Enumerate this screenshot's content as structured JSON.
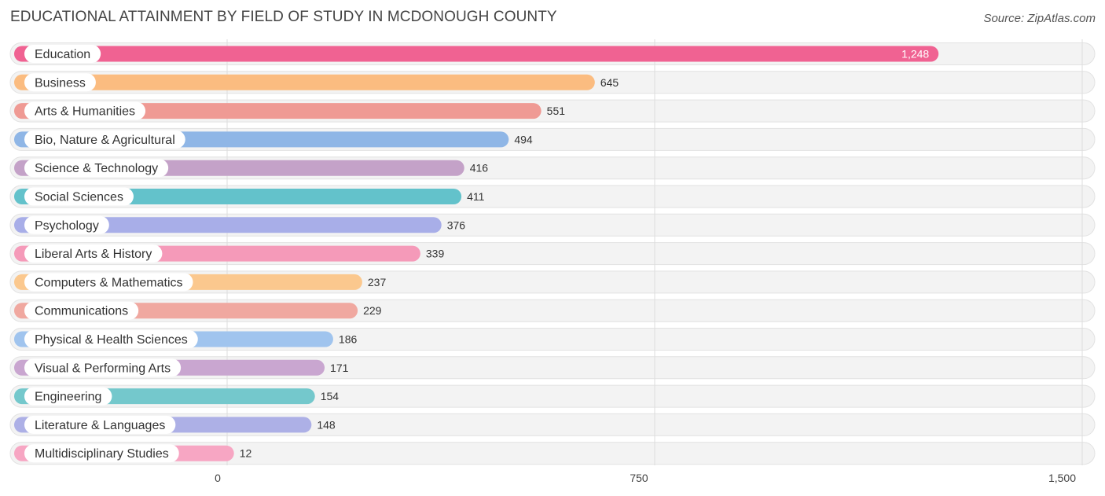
{
  "header": {
    "title": "EDUCATIONAL ATTAINMENT BY FIELD OF STUDY IN MCDONOUGH COUNTY",
    "source": "Source: ZipAtlas.com"
  },
  "chart_data": {
    "type": "bar",
    "orientation": "horizontal",
    "title": "EDUCATIONAL ATTAINMENT BY FIELD OF STUDY IN MCDONOUGH COUNTY",
    "xlabel": "",
    "ylabel": "",
    "xlim": [
      0,
      1500
    ],
    "grid": true,
    "categories": [
      "Education",
      "Business",
      "Arts & Humanities",
      "Bio, Nature & Agricultural",
      "Science & Technology",
      "Social Sciences",
      "Psychology",
      "Liberal Arts & History",
      "Computers & Mathematics",
      "Communications",
      "Physical & Health Sciences",
      "Visual & Performing Arts",
      "Engineering",
      "Literature & Languages",
      "Multidisciplinary Studies"
    ],
    "values": [
      1248,
      645,
      551,
      494,
      416,
      411,
      376,
      339,
      237,
      229,
      186,
      171,
      154,
      148,
      12
    ],
    "value_labels": [
      "1,248",
      "645",
      "551",
      "494",
      "416",
      "411",
      "376",
      "339",
      "237",
      "229",
      "186",
      "171",
      "154",
      "148",
      "12"
    ],
    "colors": [
      "#f06292",
      "#fbbc80",
      "#ef9a94",
      "#8fb6e6",
      "#c4a2c8",
      "#63c2cb",
      "#a8aee8",
      "#f59ab9",
      "#fbc88e",
      "#f0a8a0",
      "#a0c4ee",
      "#c9a6d0",
      "#74c8cc",
      "#adb0e6",
      "#f7a6c3"
    ],
    "ticks": [
      {
        "value": 0,
        "label": "0"
      },
      {
        "value": 750,
        "label": "750"
      },
      {
        "value": 1500,
        "label": "1,500"
      }
    ]
  }
}
